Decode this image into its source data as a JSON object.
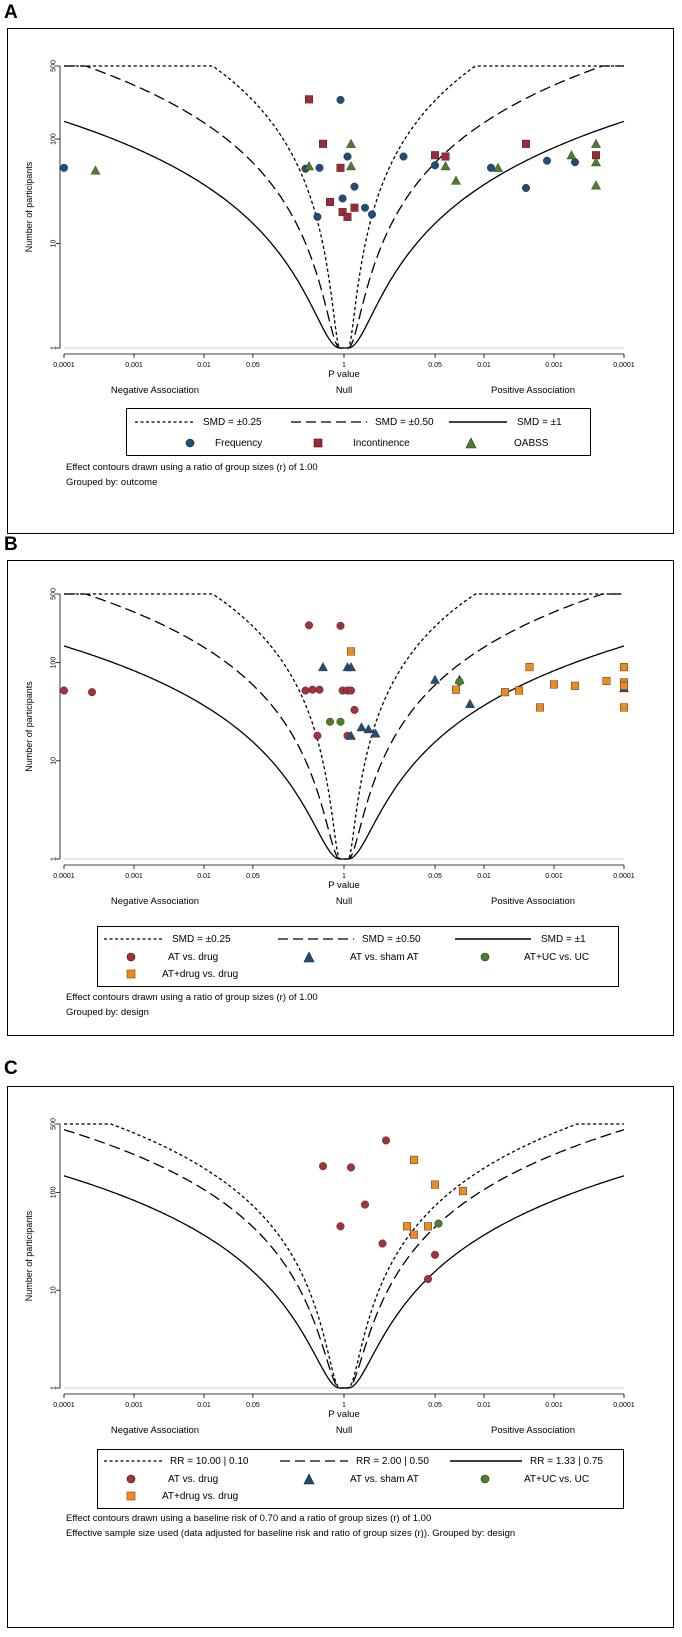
{
  "colors": {
    "frequency": "#1f4e79",
    "incontinence": "#9e2a36",
    "oabss": "#4f7d2a",
    "at_drug": "#a3323a",
    "at_sham": "#1f4e79",
    "at_uc": "#4f7d2a",
    "atdrug_drug": "#ee8a1e"
  },
  "chart_data": [
    {
      "panel": "A",
      "type": "scatter",
      "xlabel": "P value",
      "ylabel": "Number of participants",
      "x_tick_labels": [
        "0.0001",
        "0.001",
        "0.01",
        "0.05",
        "1",
        "0.05",
        "0.01",
        "0.001",
        "0.0001"
      ],
      "x_tick_positions_log10p_signed": [
        -4,
        -3,
        -2,
        -1.301,
        0,
        1.301,
        2,
        3,
        4
      ],
      "y_tick_labels": [
        "1",
        "10",
        "100",
        "500"
      ],
      "y_tick_values": [
        1,
        10,
        100,
        500
      ],
      "xlim": [
        -4,
        4
      ],
      "ylim": [
        1,
        500
      ],
      "region_labels": [
        "Negative Association",
        "Null",
        "Positive Association"
      ],
      "contours": [
        {
          "label": "SMD = ±0.25",
          "style": "short-dash",
          "effect": 0.25
        },
        {
          "label": "SMD = ±0.50",
          "style": "long-dash",
          "effect": 0.5
        },
        {
          "label": "SMD = ±1",
          "style": "solid",
          "effect": 1
        }
      ],
      "series": [
        {
          "name": "Frequency",
          "marker": "circle",
          "color_key": "frequency",
          "points": [
            [
              -4,
              53
            ],
            [
              -0.55,
              52
            ],
            [
              -0.35,
              53
            ],
            [
              -0.38,
              18
            ],
            [
              -0.05,
              237
            ],
            [
              -0.02,
              27
            ],
            [
              0.05,
              68
            ],
            [
              0.15,
              35
            ],
            [
              0.3,
              22
            ],
            [
              0.4,
              19
            ],
            [
              0.85,
              68
            ],
            [
              1.3,
              56
            ],
            [
              2.1,
              53
            ],
            [
              2.6,
              34
            ],
            [
              2.9,
              62
            ],
            [
              3.3,
              60
            ]
          ]
        },
        {
          "name": "Incontinence",
          "marker": "square",
          "color_key": "incontinence",
          "points": [
            [
              -0.5,
              240
            ],
            [
              -0.3,
              90
            ],
            [
              -0.2,
              25
            ],
            [
              -0.05,
              53
            ],
            [
              -0.02,
              20
            ],
            [
              0.05,
              18
            ],
            [
              0.15,
              22
            ],
            [
              1.3,
              70
            ],
            [
              1.45,
              68
            ],
            [
              2.6,
              90
            ],
            [
              3.6,
              70
            ]
          ]
        },
        {
          "name": "OABSS",
          "marker": "triangle",
          "color_key": "oabss",
          "points": [
            [
              -3.55,
              50
            ],
            [
              -0.5,
              55
            ],
            [
              0.1,
              90
            ],
            [
              0.1,
              55
            ],
            [
              1.45,
              55
            ],
            [
              1.6,
              40
            ],
            [
              2.2,
              53
            ],
            [
              3.25,
              70
            ],
            [
              3.6,
              90
            ],
            [
              3.6,
              60
            ],
            [
              3.6,
              36
            ]
          ]
        }
      ],
      "legend_labels": [
        "Frequency",
        "Incontinence",
        "OABSS"
      ],
      "notes": [
        "Effect contours drawn using a ratio of group sizes (r) of 1.00",
        "Grouped by: outcome"
      ]
    },
    {
      "panel": "B",
      "type": "scatter",
      "xlabel": "P value",
      "ylabel": "Number of participants",
      "x_tick_labels": [
        "0.0001",
        "0.001",
        "0.01",
        "0.05",
        "1",
        "0.05",
        "0.01",
        "0.001",
        "0.0001"
      ],
      "x_tick_positions_log10p_signed": [
        -4,
        -3,
        -2,
        -1.301,
        0,
        1.301,
        2,
        3,
        4
      ],
      "y_tick_labels": [
        "1",
        "10",
        "100",
        "500"
      ],
      "y_tick_values": [
        1,
        10,
        100,
        500
      ],
      "xlim": [
        -4,
        4
      ],
      "ylim": [
        1,
        500
      ],
      "region_labels": [
        "Negative Association",
        "Null",
        "Positive Association"
      ],
      "contours": [
        {
          "label": "SMD = ±0.25",
          "style": "short-dash",
          "effect": 0.25
        },
        {
          "label": "SMD = ±0.50",
          "style": "long-dash",
          "effect": 0.5
        },
        {
          "label": "SMD = ±1",
          "style": "solid",
          "effect": 1
        }
      ],
      "series": [
        {
          "name": "AT vs. drug",
          "marker": "circle",
          "color_key": "at_drug",
          "points": [
            [
              -4,
              52
            ],
            [
              -3.6,
              50
            ],
            [
              -0.5,
              240
            ],
            [
              -0.55,
              52
            ],
            [
              -0.45,
              53
            ],
            [
              -0.35,
              53
            ],
            [
              -0.38,
              18
            ],
            [
              -0.05,
              237
            ],
            [
              -0.02,
              52
            ],
            [
              0.05,
              52
            ],
            [
              0.1,
              52
            ],
            [
              0.15,
              33
            ],
            [
              0.05,
              18
            ]
          ]
        },
        {
          "name": "AT vs. sham AT",
          "marker": "triangle",
          "color_key": "at_sham",
          "points": [
            [
              -0.3,
              90
            ],
            [
              0.05,
              90
            ],
            [
              0.1,
              90
            ],
            [
              0.1,
              18
            ],
            [
              0.25,
              22
            ],
            [
              0.35,
              21
            ],
            [
              0.45,
              19
            ],
            [
              1.3,
              67
            ],
            [
              1.65,
              67
            ],
            [
              1.8,
              38
            ],
            [
              4,
              55
            ]
          ]
        },
        {
          "name": "AT+UC vs. UC",
          "marker": "circle",
          "color_key": "at_uc",
          "points": [
            [
              -0.2,
              25
            ],
            [
              -0.05,
              25
            ],
            [
              1.65,
              64
            ]
          ]
        },
        {
          "name": "AT+drug vs. drug",
          "marker": "square",
          "color_key": "atdrug_drug",
          "points": [
            [
              0.1,
              130
            ],
            [
              1.6,
              53
            ],
            [
              2.3,
              50
            ],
            [
              2.5,
              52
            ],
            [
              2.65,
              90
            ],
            [
              2.8,
              35
            ],
            [
              3.0,
              60
            ],
            [
              3.3,
              58
            ],
            [
              3.75,
              65
            ],
            [
              4,
              90
            ],
            [
              4,
              63
            ],
            [
              4,
              58
            ],
            [
              4,
              35
            ]
          ]
        }
      ],
      "legend_labels": [
        "AT vs. drug",
        "AT vs. sham AT",
        "AT+UC vs. UC",
        "AT+drug vs. drug"
      ],
      "notes": [
        "Effect contours drawn using a ratio of group sizes (r) of 1.00",
        "Grouped by: design"
      ]
    },
    {
      "panel": "C",
      "type": "scatter",
      "xlabel": "P value",
      "ylabel": "Number of participants",
      "x_tick_labels": [
        "0.0001",
        "0.001",
        "0.01",
        "0.05",
        "1",
        "0.05",
        "0.01",
        "0.001",
        "0.0001"
      ],
      "x_tick_positions_log10p_signed": [
        -4,
        -3,
        -2,
        -1.301,
        0,
        1.301,
        2,
        3,
        4
      ],
      "y_tick_labels": [
        "1",
        "10",
        "100",
        "500"
      ],
      "y_tick_values": [
        1,
        10,
        100,
        500
      ],
      "xlim": [
        -4,
        4
      ],
      "ylim": [
        1,
        500
      ],
      "region_labels": [
        "Negative Association",
        "Null",
        "Positive Association"
      ],
      "contours": [
        {
          "label": "RR = 10.00 | 0.10",
          "style": "short-dash",
          "effect": 0.45
        },
        {
          "label": "RR = 2.00 | 0.50",
          "style": "long-dash",
          "effect": 0.58
        },
        {
          "label": "RR = 1.33 | 0.75",
          "style": "solid",
          "effect": 1.0
        }
      ],
      "series": [
        {
          "name": "AT vs. drug",
          "marker": "circle",
          "color_key": "at_drug",
          "points": [
            [
              0.6,
              340
            ],
            [
              -0.3,
              185
            ],
            [
              0.1,
              180
            ],
            [
              0.3,
              75
            ],
            [
              -0.05,
              45
            ],
            [
              0.55,
              30
            ],
            [
              1.3,
              23
            ],
            [
              1.2,
              13
            ]
          ]
        },
        {
          "name": "AT vs. sham AT",
          "marker": "triangle",
          "color_key": "at_sham",
          "points": []
        },
        {
          "name": "AT+UC vs. UC",
          "marker": "circle",
          "color_key": "at_uc",
          "points": [
            [
              1.35,
              48
            ]
          ]
        },
        {
          "name": "AT+drug vs. drug",
          "marker": "square",
          "color_key": "atdrug_drug",
          "points": [
            [
              1.0,
              215
            ],
            [
              1.3,
              120
            ],
            [
              1.7,
              103
            ],
            [
              0.9,
              45
            ],
            [
              1.0,
              37
            ],
            [
              1.2,
              45
            ]
          ]
        }
      ],
      "legend_labels": [
        "AT vs. drug",
        "AT vs. sham AT",
        "AT+UC vs. UC",
        "AT+drug vs. drug"
      ],
      "notes": [
        "Effect contours drawn using a baseline risk of 0.70 and a ratio of group sizes (r) of 1.00",
        "Effective sample size used (data adjusted for baseline risk and ratio of group sizes (r)). Grouped by: design"
      ]
    }
  ]
}
